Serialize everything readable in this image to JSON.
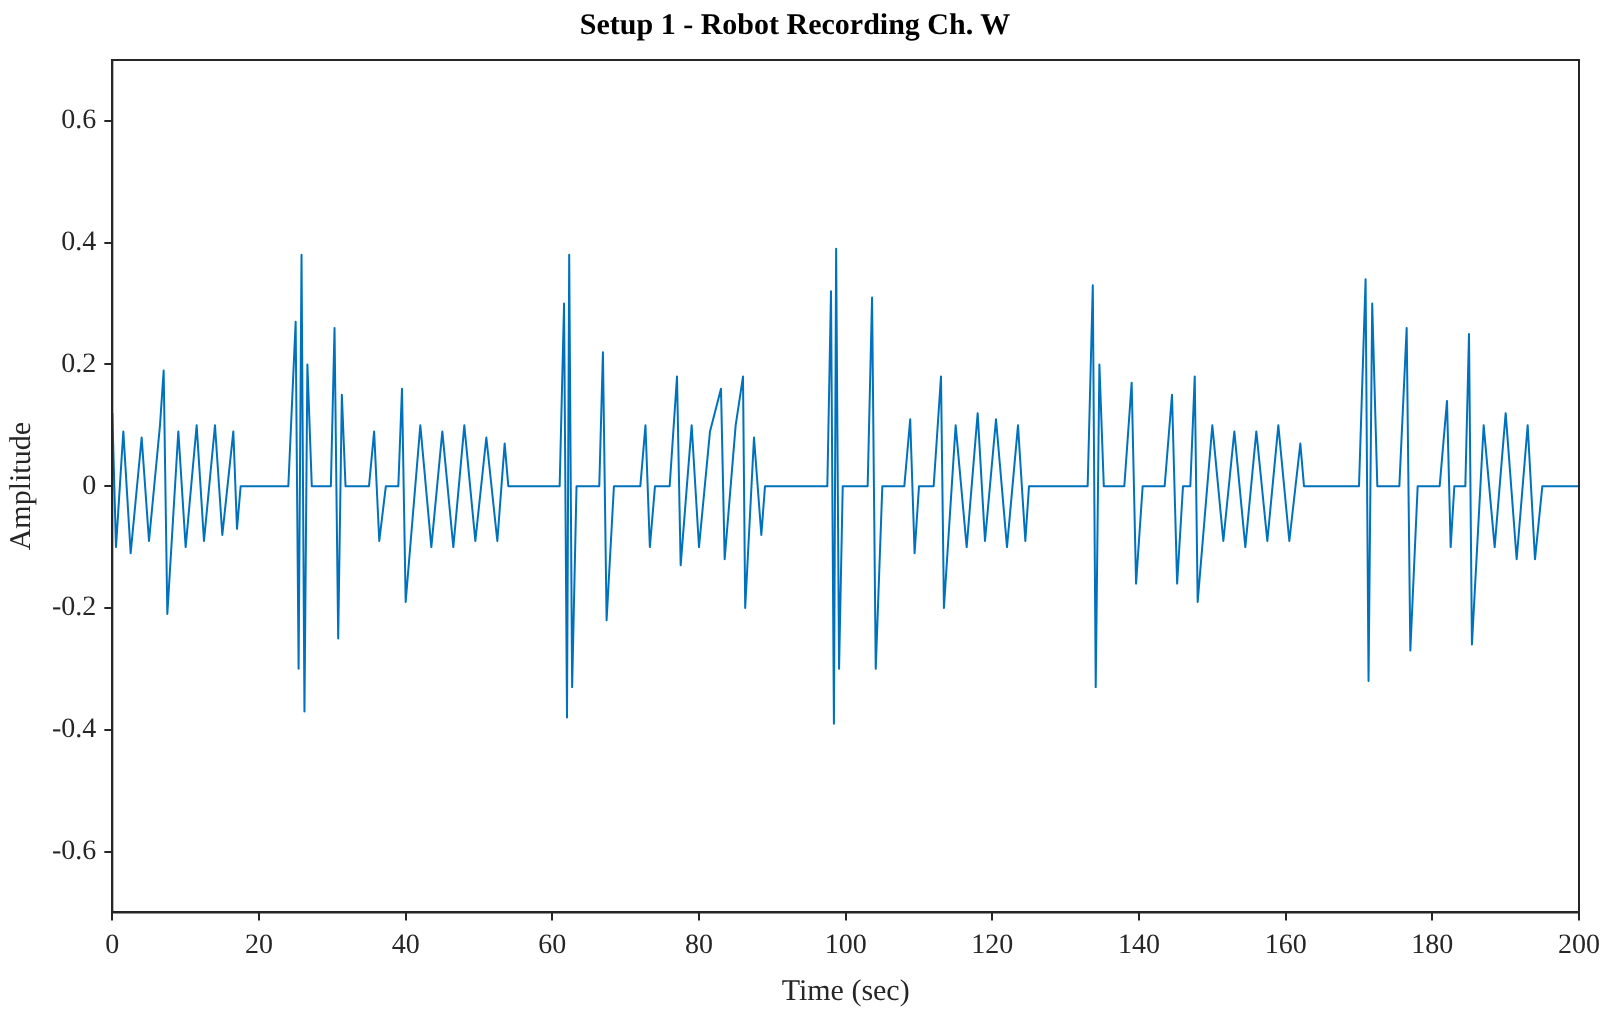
{
  "chart_data": {
    "type": "line",
    "title": "Setup 1 - Robot Recording Ch. W",
    "xlabel": "Time (sec)",
    "ylabel": "Amplitude",
    "xlim": [
      0,
      200
    ],
    "xticks": [
      0,
      20,
      40,
      60,
      80,
      100,
      120,
      140,
      160,
      180,
      200
    ],
    "ylim": [
      -0.7,
      0.7
    ],
    "yticks": [
      -0.6,
      -0.4,
      -0.2,
      0,
      0.2,
      0.4,
      0.6
    ],
    "grid": false,
    "legend": false,
    "marker": "none",
    "line_style": "solid",
    "series": [
      {
        "color": "#0072bd",
        "x": [
          0,
          0.5,
          1.5,
          2.5,
          4,
          5,
          6.5,
          7,
          7.5,
          9,
          10,
          11.5,
          12.5,
          14,
          15,
          16.5,
          17,
          17.5,
          24,
          25,
          25.4,
          25.8,
          26.2,
          26.6,
          27.2,
          29.8,
          30.3,
          30.8,
          31.3,
          31.8,
          35,
          35.7,
          36.4,
          37.3,
          39,
          39.5,
          40,
          42,
          43.5,
          45,
          46.5,
          48,
          49.5,
          51,
          52.5,
          53.5,
          54,
          61,
          61.6,
          62,
          62.3,
          62.7,
          63.3,
          66.4,
          66.9,
          67.4,
          68.4,
          72,
          72.7,
          73.3,
          74,
          76,
          77,
          77.5,
          79,
          80,
          81.5,
          83,
          83.5,
          85,
          86,
          86.3,
          87.5,
          88.5,
          89,
          97.5,
          98,
          98.4,
          98.7,
          99.1,
          99.6,
          103,
          103.6,
          104.1,
          105,
          108,
          108.8,
          109.4,
          110,
          112,
          113,
          113.4,
          115,
          116.5,
          118,
          119,
          120.5,
          122,
          123.5,
          124.5,
          125,
          133,
          133.7,
          134.1,
          134.6,
          135.2,
          138,
          139,
          139.6,
          140.5,
          143.5,
          144.5,
          145.2,
          146,
          147,
          147.6,
          148,
          150,
          151.5,
          153,
          154.5,
          156,
          157.5,
          159,
          160.5,
          162,
          162.5,
          170,
          170.9,
          171.3,
          171.8,
          172.5,
          175.5,
          176.5,
          177,
          178,
          181,
          182,
          182.5,
          183,
          184.5,
          185,
          185.4,
          187,
          188.5,
          190,
          191.5,
          193,
          194,
          195,
          200
        ],
        "values": [
          0.12,
          -0.1,
          0.09,
          -0.11,
          0.08,
          -0.09,
          0.1,
          0.19,
          -0.21,
          0.09,
          -0.1,
          0.1,
          -0.09,
          0.1,
          -0.08,
          0.09,
          -0.07,
          0,
          0,
          0.27,
          -0.3,
          0.38,
          -0.37,
          0.2,
          0,
          0,
          0.26,
          -0.25,
          0.15,
          0,
          0,
          0.09,
          -0.09,
          0,
          0,
          0.16,
          -0.19,
          0.1,
          -0.1,
          0.09,
          -0.1,
          0.1,
          -0.09,
          0.08,
          -0.09,
          0.07,
          0,
          0,
          0.3,
          -0.38,
          0.38,
          -0.33,
          0,
          0,
          0.22,
          -0.22,
          0,
          0,
          0.1,
          -0.1,
          0,
          0,
          0.18,
          -0.13,
          0.1,
          -0.1,
          0.09,
          0.16,
          -0.12,
          0.1,
          0.18,
          -0.2,
          0.08,
          -0.08,
          0,
          0,
          0.32,
          -0.39,
          0.39,
          -0.3,
          0,
          0,
          0.31,
          -0.3,
          0,
          0,
          0.11,
          -0.11,
          0,
          0,
          0.18,
          -0.2,
          0.1,
          -0.1,
          0.12,
          -0.09,
          0.11,
          -0.1,
          0.1,
          -0.09,
          0,
          0,
          0.33,
          -0.33,
          0.2,
          0,
          0,
          0.17,
          -0.16,
          0,
          0,
          0.15,
          -0.16,
          0,
          0,
          0.18,
          -0.19,
          0.1,
          -0.09,
          0.09,
          -0.1,
          0.09,
          -0.09,
          0.1,
          -0.09,
          0.07,
          0,
          0,
          0.34,
          -0.32,
          0.3,
          0,
          0,
          0.26,
          -0.27,
          0,
          0,
          0.14,
          -0.1,
          0,
          0,
          0.25,
          -0.26,
          0.1,
          -0.1,
          0.12,
          -0.12,
          0.1,
          -0.12,
          0,
          0
        ]
      }
    ]
  }
}
